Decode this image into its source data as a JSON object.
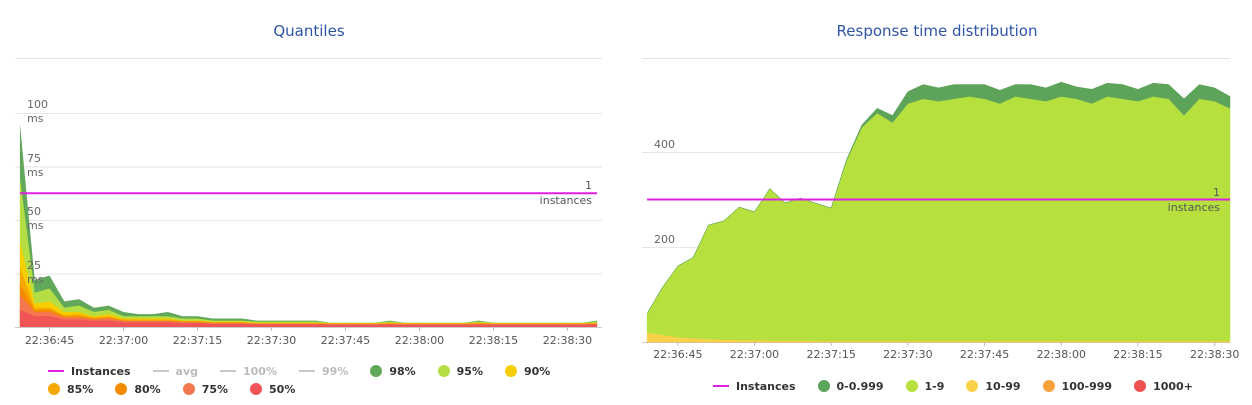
{
  "chart_data": [
    {
      "type": "area",
      "title": "Quantiles",
      "x": [
        "22:36:39",
        "22:36:42",
        "22:36:45",
        "22:36:48",
        "22:36:51",
        "22:36:54",
        "22:36:57",
        "22:37:00",
        "22:37:03",
        "22:37:06",
        "22:37:09",
        "22:37:12",
        "22:37:15",
        "22:37:18",
        "22:37:21",
        "22:37:24",
        "22:37:27",
        "22:37:30",
        "22:37:33",
        "22:37:36",
        "22:37:39",
        "22:37:42",
        "22:37:45",
        "22:37:48",
        "22:37:51",
        "22:37:54",
        "22:37:57",
        "22:38:00",
        "22:38:03",
        "22:38:06",
        "22:38:09",
        "22:38:12",
        "22:38:15",
        "22:38:18",
        "22:38:21",
        "22:38:24",
        "22:38:27",
        "22:38:30",
        "22:38:33",
        "22:38:36"
      ],
      "xlim": [
        "22:36:38",
        "22:38:37"
      ],
      "xticks": [
        "22:36:45",
        "22:37:00",
        "22:37:15",
        "22:37:30",
        "22:37:45",
        "22:38:00",
        "22:38:15",
        "22:38:30"
      ],
      "ylim": [
        0,
        100
      ],
      "yticks": [
        {
          "value": 25,
          "label": "25 ms"
        },
        {
          "value": 50,
          "label": "50 ms"
        },
        {
          "value": 75,
          "label": "75 ms"
        },
        {
          "value": 100,
          "label": "100 ms"
        }
      ],
      "y2lim": [
        0,
        1.6
      ],
      "y2ticks": [
        {
          "value": 1,
          "label": "1 instances"
        }
      ],
      "grid": true,
      "stacked": false,
      "series": [
        {
          "name": "Instances",
          "type": "line",
          "axis": "y2",
          "color": "#e020e0",
          "values": [
            1,
            1,
            1,
            1,
            1,
            1,
            1,
            1,
            1,
            1,
            1,
            1,
            1,
            1,
            1,
            1,
            1,
            1,
            1,
            1,
            1,
            1,
            1,
            1,
            1,
            1,
            1,
            1,
            1,
            1,
            1,
            1,
            1,
            1,
            1,
            1,
            1,
            1,
            1,
            1
          ]
        },
        {
          "name": "avg",
          "hidden": true,
          "color": "#c8c8c8"
        },
        {
          "name": "100%",
          "hidden": true,
          "color": "#c8c8c8"
        },
        {
          "name": "99%",
          "hidden": true,
          "color": "#c8c8c8"
        },
        {
          "name": "98%",
          "color": "#62a85a",
          "values": [
            95,
            22,
            24,
            12,
            13,
            9,
            10,
            7,
            6,
            6,
            7,
            5,
            5,
            4,
            4,
            4,
            3,
            3,
            3,
            3,
            3,
            2,
            2,
            2,
            2,
            3,
            2,
            2,
            2,
            2,
            2,
            3,
            2,
            2,
            2,
            2,
            2,
            2,
            2,
            3
          ]
        },
        {
          "name": "95%",
          "color": "#b5dd44",
          "values": [
            70,
            16,
            18,
            9,
            10,
            7,
            8,
            5,
            5,
            5,
            5,
            4,
            4,
            3,
            3,
            3,
            2.5,
            2.5,
            2.5,
            2.5,
            2.5,
            2,
            2,
            2,
            2,
            2.5,
            2,
            2,
            2,
            2,
            2,
            2.5,
            2,
            2,
            2,
            2,
            2,
            2,
            2,
            2.5
          ]
        },
        {
          "name": "90%",
          "color": "#f5cf00",
          "values": [
            40,
            11,
            12,
            7,
            7,
            5,
            6,
            4,
            4,
            4,
            4,
            3,
            3,
            2.5,
            2.5,
            2.5,
            2,
            2,
            2,
            2,
            2,
            1.8,
            1.8,
            1.8,
            1.8,
            2,
            1.8,
            1.8,
            1.8,
            1.8,
            1.8,
            2,
            1.8,
            1.8,
            1.8,
            1.8,
            1.8,
            1.8,
            1.8,
            2
          ]
        },
        {
          "name": "85%",
          "color": "#f5a800",
          "values": [
            28,
            9,
            9,
            5.5,
            6,
            4.5,
            5,
            3.5,
            3.5,
            3.5,
            3.5,
            2.8,
            2.8,
            2.3,
            2.3,
            2.3,
            1.8,
            1.8,
            1.8,
            1.8,
            1.8,
            1.6,
            1.6,
            1.6,
            1.6,
            1.8,
            1.6,
            1.6,
            1.6,
            1.6,
            1.6,
            1.8,
            1.6,
            1.6,
            1.6,
            1.6,
            1.6,
            1.6,
            1.6,
            1.8
          ]
        },
        {
          "name": "80%",
          "color": "#f58a00",
          "values": [
            20,
            8,
            8,
            5,
            5,
            4,
            4.5,
            3,
            3,
            3,
            3,
            2.5,
            2.5,
            2,
            2,
            2,
            1.6,
            1.6,
            1.6,
            1.6,
            1.6,
            1.5,
            1.5,
            1.5,
            1.5,
            1.6,
            1.5,
            1.5,
            1.5,
            1.5,
            1.5,
            1.6,
            1.5,
            1.5,
            1.5,
            1.5,
            1.5,
            1.5,
            1.5,
            1.6
          ]
        },
        {
          "name": "75%",
          "color": "#f5774f",
          "values": [
            15,
            7,
            7,
            4.5,
            4.5,
            3.5,
            4,
            2.8,
            2.8,
            2.8,
            2.8,
            2.3,
            2.3,
            1.8,
            1.8,
            1.8,
            1.5,
            1.5,
            1.5,
            1.5,
            1.5,
            1.4,
            1.4,
            1.4,
            1.4,
            1.5,
            1.4,
            1.4,
            1.4,
            1.4,
            1.4,
            1.5,
            1.4,
            1.4,
            1.4,
            1.4,
            1.4,
            1.4,
            1.4,
            1.5
          ]
        },
        {
          "name": "50%",
          "color": "#f05454",
          "values": [
            8,
            5,
            5,
            3.5,
            3.5,
            3,
            3,
            2.2,
            2.2,
            2.2,
            2.2,
            1.8,
            1.8,
            1.4,
            1.4,
            1.4,
            1.2,
            1.2,
            1.2,
            1.2,
            1.2,
            1.1,
            1.1,
            1.1,
            1.1,
            1.2,
            1.1,
            1.1,
            1.1,
            1.1,
            1.1,
            1.2,
            1.1,
            1.1,
            1.1,
            1.1,
            1.1,
            1.1,
            1.1,
            1.2
          ]
        }
      ]
    },
    {
      "type": "area",
      "title": "Response time distribution",
      "x": [
        "22:36:39",
        "22:36:42",
        "22:36:45",
        "22:36:48",
        "22:36:51",
        "22:36:54",
        "22:36:57",
        "22:37:00",
        "22:37:03",
        "22:37:06",
        "22:37:09",
        "22:37:12",
        "22:37:15",
        "22:37:18",
        "22:37:21",
        "22:37:24",
        "22:37:27",
        "22:37:30",
        "22:37:33",
        "22:37:36",
        "22:37:39",
        "22:37:42",
        "22:37:45",
        "22:37:48",
        "22:37:51",
        "22:37:54",
        "22:37:57",
        "22:38:00",
        "22:38:03",
        "22:38:06",
        "22:38:09",
        "22:38:12",
        "22:38:15",
        "22:38:18",
        "22:38:21",
        "22:38:24",
        "22:38:27",
        "22:38:30",
        "22:38:33"
      ],
      "xlim": [
        "22:36:38",
        "22:38:33"
      ],
      "xticks": [
        "22:36:45",
        "22:37:00",
        "22:37:15",
        "22:37:30",
        "22:37:45",
        "22:38:00",
        "22:38:15",
        "22:38:30"
      ],
      "ylim": [
        0,
        600
      ],
      "yticks": [
        200,
        400
      ],
      "y2lim": [
        0,
        2
      ],
      "y2ticks": [
        {
          "value": 1,
          "label": "1 instances"
        }
      ],
      "grid": true,
      "stacked": true,
      "series": [
        {
          "name": "Instances",
          "type": "line",
          "axis": "y2",
          "color": "#e020e0",
          "values": [
            1,
            1,
            1,
            1,
            1,
            1,
            1,
            1,
            1,
            1,
            1,
            1,
            1,
            1,
            1,
            1,
            1,
            1,
            1,
            1,
            1,
            1,
            1,
            1,
            1,
            1,
            1,
            1,
            1,
            1,
            1,
            1,
            1,
            1,
            1,
            1,
            1,
            1,
            1
          ]
        },
        {
          "name": "0-0.999",
          "color": "#5da45a",
          "values": [
            0,
            0,
            0,
            0,
            0,
            0,
            0,
            0,
            0,
            0,
            0,
            0,
            0,
            2,
            5,
            10,
            15,
            25,
            30,
            28,
            30,
            25,
            30,
            28,
            25,
            30,
            28,
            30,
            25,
            30,
            28,
            30,
            25,
            28,
            30,
            35,
            30,
            28,
            25
          ]
        },
        {
          "name": "1-9",
          "color": "#b5e03e",
          "values": [
            40,
            100,
            150,
            170,
            240,
            250,
            280,
            270,
            320,
            290,
            300,
            290,
            280,
            380,
            450,
            480,
            460,
            500,
            510,
            505,
            510,
            515,
            510,
            500,
            515,
            510,
            505,
            515,
            510,
            500,
            515,
            510,
            505,
            515,
            510,
            475,
            510,
            505,
            490
          ]
        },
        {
          "name": "10-99",
          "color": "#fad24a",
          "values": [
            20,
            15,
            10,
            8,
            6,
            5,
            4,
            4,
            3,
            3,
            3,
            2,
            2,
            2,
            2,
            2,
            2,
            2,
            2,
            2,
            2,
            2,
            2,
            2,
            2,
            2,
            2,
            2,
            2,
            2,
            2,
            2,
            2,
            2,
            2,
            2,
            2,
            2,
            2
          ]
        },
        {
          "name": "100-999",
          "color": "#f8a03c",
          "values": [
            0,
            0,
            0,
            0,
            0,
            0,
            0,
            0,
            0,
            0,
            0,
            0,
            0,
            0,
            0,
            0,
            0,
            0,
            0,
            0,
            0,
            0,
            0,
            0,
            0,
            0,
            0,
            0,
            0,
            0,
            0,
            0,
            0,
            0,
            0,
            0,
            0,
            0,
            0
          ]
        },
        {
          "name": "1000+",
          "color": "#f05050",
          "values": [
            0,
            0,
            0,
            0,
            0,
            0,
            0,
            0,
            0,
            0,
            0,
            0,
            0,
            0,
            0,
            0,
            0,
            0,
            0,
            0,
            0,
            0,
            0,
            0,
            0,
            0,
            0,
            0,
            0,
            0,
            0,
            0,
            0,
            0,
            0,
            0,
            0,
            0,
            0
          ]
        }
      ]
    }
  ]
}
